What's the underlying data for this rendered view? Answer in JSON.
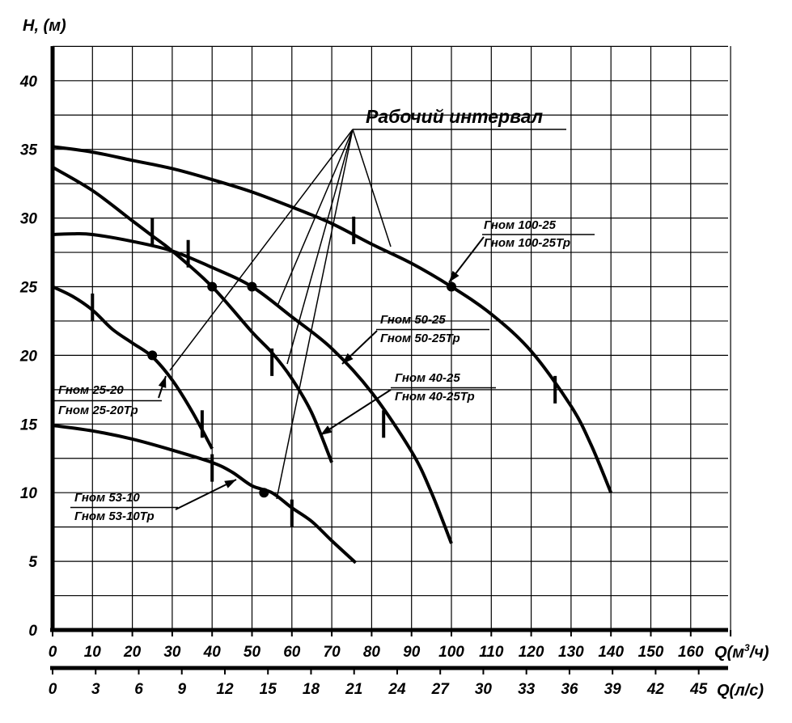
{
  "chart_data": {
    "type": "line",
    "ylabel": "H, (м)",
    "xlabel": "Q(м³/ч)",
    "xlabel2": "Q(л/с)",
    "xlim": [
      0,
      170
    ],
    "ylim": [
      0,
      42.5
    ],
    "x_ticks": [
      0,
      10,
      20,
      30,
      40,
      50,
      60,
      70,
      80,
      90,
      100,
      110,
      120,
      130,
      140,
      150,
      160
    ],
    "x2_ticks": [
      0,
      3,
      6,
      9,
      12,
      15,
      18,
      21,
      24,
      27,
      30,
      33,
      36,
      39,
      42,
      45
    ],
    "y_ticks": [
      0,
      5,
      10,
      15,
      20,
      25,
      30,
      35,
      40
    ],
    "grid": true,
    "annotation": "Рабочий интервал",
    "series": [
      {
        "name": "Гном 100-25 / Гном 100-25Тр",
        "label_top": "Гном 100-25",
        "label_bottom": "Гном 100-25Тр",
        "points": [
          [
            0,
            35.2
          ],
          [
            10,
            34.8
          ],
          [
            20,
            34.2
          ],
          [
            30,
            33.6
          ],
          [
            40,
            32.8
          ],
          [
            50,
            31.9
          ],
          [
            60,
            30.8
          ],
          [
            70,
            29.6
          ],
          [
            80,
            28.1
          ],
          [
            90,
            26.7
          ],
          [
            100,
            25
          ],
          [
            110,
            23
          ],
          [
            120,
            20.3
          ],
          [
            130,
            16.3
          ],
          [
            135,
            13.5
          ],
          [
            140,
            10
          ]
        ],
        "rated_point": [
          100,
          25
        ],
        "interval_marks": [
          [
            75.5,
            29.1
          ],
          [
            126,
            17.5
          ]
        ]
      },
      {
        "name": "Гном 50-25 / Гном 50-25Тр",
        "label_top": "Гном 50-25",
        "label_bottom": "Гном 50-25Тр",
        "points": [
          [
            0,
            28.8
          ],
          [
            5,
            28.85
          ],
          [
            10,
            28.8
          ],
          [
            20,
            28.3
          ],
          [
            30,
            27.6
          ],
          [
            40,
            26.4
          ],
          [
            50,
            25
          ],
          [
            60,
            22.8
          ],
          [
            70,
            20.5
          ],
          [
            80,
            17.3
          ],
          [
            90,
            13
          ],
          [
            95,
            10
          ],
          [
            100,
            6.3
          ]
        ],
        "rated_point": [
          50,
          25
        ],
        "interval_marks": [
          [
            34,
            27.4
          ],
          [
            83,
            15
          ]
        ]
      },
      {
        "name": "Гном 40-25 / Гном 40-25Тр",
        "label_top": "Гном 40-25",
        "label_bottom": "Гном 40-25Тр",
        "points": [
          [
            0,
            33.7
          ],
          [
            10,
            32
          ],
          [
            20,
            29.8
          ],
          [
            25,
            28.7
          ],
          [
            30,
            27.6
          ],
          [
            40,
            25
          ],
          [
            50,
            21.7
          ],
          [
            55,
            20.2
          ],
          [
            60,
            18.3
          ],
          [
            65,
            15.8
          ],
          [
            70,
            12.2
          ]
        ],
        "rated_point": [
          40,
          25
        ],
        "interval_marks": [
          [
            25,
            29
          ],
          [
            55,
            19.5
          ]
        ]
      },
      {
        "name": "Гном 25-20 / Гном 25-20Тр",
        "label_top": "Гном 25-20",
        "label_bottom": "Гном 25-20Тр",
        "points": [
          [
            0,
            25
          ],
          [
            5,
            24.3
          ],
          [
            10,
            23.3
          ],
          [
            15,
            21.9
          ],
          [
            20,
            20.9
          ],
          [
            25,
            19.9
          ],
          [
            30,
            18.2
          ],
          [
            35,
            15.9
          ],
          [
            40,
            13.2
          ]
        ],
        "rated_point": [
          25,
          20
        ],
        "interval_marks": [
          [
            10,
            23.5
          ],
          [
            37.5,
            15
          ]
        ]
      },
      {
        "name": "Гном 53-10 / Гном 53-10Тр",
        "label_top": "Гном 53-10",
        "label_bottom": "Гном 53-10Тр",
        "points": [
          [
            0,
            14.9
          ],
          [
            10,
            14.5
          ],
          [
            20,
            13.9
          ],
          [
            30,
            13.1
          ],
          [
            40,
            12.2
          ],
          [
            45,
            11.5
          ],
          [
            50,
            10.5
          ],
          [
            55,
            10
          ],
          [
            60,
            8.9
          ],
          [
            65,
            7.9
          ],
          [
            70,
            6.5
          ],
          [
            76,
            4.9
          ]
        ],
        "rated_point": [
          53,
          10
        ],
        "interval_marks": [
          [
            40,
            11.8
          ],
          [
            60,
            8.5
          ]
        ]
      }
    ]
  }
}
